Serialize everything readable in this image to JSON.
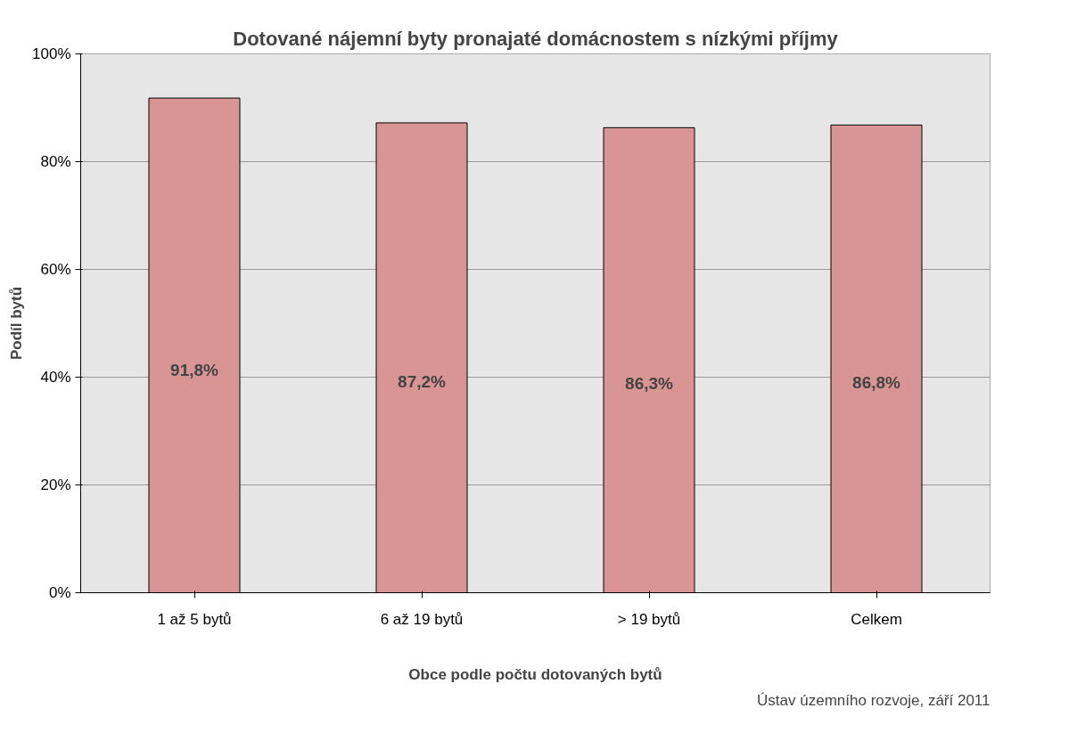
{
  "chart_data": {
    "type": "bar",
    "title": "Dotované nájemní byty pronajaté domácnostem s nízkými příjmy",
    "xlabel": "Obce podle počtu dotovaných bytů",
    "ylabel": "Podíl bytů",
    "categories": [
      "1 až 5 bytů",
      "6 až 19 bytů",
      "> 19 bytů",
      "Celkem"
    ],
    "values": [
      91.8,
      87.2,
      86.3,
      86.8
    ],
    "value_labels": [
      "91,8%",
      "87,2%",
      "86,3%",
      "86,8%"
    ],
    "color": "#d99594",
    "ylim": [
      0,
      100
    ],
    "yticks": [
      {
        "value": 0,
        "label": "0%"
      },
      {
        "value": 20,
        "label": "20%"
      },
      {
        "value": 40,
        "label": "40%"
      },
      {
        "value": 60,
        "label": "60%"
      },
      {
        "value": 80,
        "label": "80%"
      },
      {
        "value": 100,
        "label": "100%"
      }
    ],
    "grid": "y",
    "annotations": [
      "Ústav územního rozvoje, září 2011"
    ]
  }
}
